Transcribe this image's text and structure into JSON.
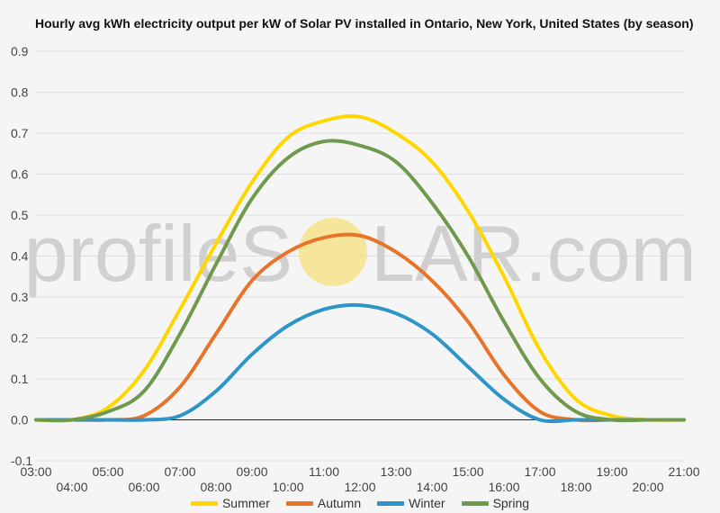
{
  "title": "Hourly avg kWh electricity output per kW of Solar PV installed in Ontario, New York, United States (by season)",
  "watermark": {
    "text_before": "profileS",
    "text_after": "LAR.com",
    "sun_color": "#f6e07c"
  },
  "chart_data": {
    "type": "line",
    "title": "Hourly avg kWh electricity output per kW of Solar PV installed in Ontario, New York, United States (by season)",
    "xlabel": "",
    "ylabel": "",
    "ylim": [
      -0.1,
      0.9
    ],
    "y_ticks": [
      "-0.1",
      "0.0",
      "0.1",
      "0.2",
      "0.3",
      "0.4",
      "0.5",
      "0.6",
      "0.7",
      "0.8",
      "0.9"
    ],
    "x_range": [
      3,
      21
    ],
    "x_tick_labels": [
      "03:00",
      "04:00",
      "05:00",
      "06:00",
      "07:00",
      "08:00",
      "09:00",
      "10:00",
      "11:00",
      "12:00",
      "13:00",
      "14:00",
      "15:00",
      "16:00",
      "17:00",
      "18:00",
      "19:00",
      "20:00",
      "21:00"
    ],
    "grid": true,
    "legend_position": "bottom",
    "x": [
      "03:00",
      "04:00",
      "05:00",
      "06:00",
      "07:00",
      "08:00",
      "09:00",
      "10:00",
      "11:00",
      "12:00",
      "13:00",
      "14:00",
      "15:00",
      "16:00",
      "17:00",
      "18:00",
      "19:00",
      "20:00",
      "21:00"
    ],
    "series": [
      {
        "name": "Summer",
        "color": "#ffd600",
        "values": [
          0.0,
          0.0,
          0.03,
          0.12,
          0.27,
          0.43,
          0.58,
          0.69,
          0.73,
          0.74,
          0.7,
          0.63,
          0.51,
          0.35,
          0.17,
          0.05,
          0.01,
          0.0,
          0.0
        ]
      },
      {
        "name": "Autumn",
        "color": "#e8732a",
        "values": [
          0.0,
          0.0,
          0.0,
          0.01,
          0.08,
          0.21,
          0.34,
          0.41,
          0.445,
          0.45,
          0.41,
          0.34,
          0.24,
          0.11,
          0.02,
          0.0,
          0.0,
          0.0,
          0.0
        ]
      },
      {
        "name": "Winter",
        "color": "#2d95c8",
        "values": [
          0.0,
          0.0,
          0.0,
          0.0,
          0.01,
          0.07,
          0.16,
          0.23,
          0.27,
          0.28,
          0.26,
          0.21,
          0.13,
          0.05,
          0.0,
          0.0,
          0.0,
          0.0,
          0.0
        ]
      },
      {
        "name": "Spring",
        "color": "#6f9a4e",
        "values": [
          0.0,
          0.0,
          0.02,
          0.07,
          0.21,
          0.38,
          0.54,
          0.64,
          0.68,
          0.67,
          0.63,
          0.53,
          0.4,
          0.24,
          0.1,
          0.02,
          0.0,
          0.0,
          0.0
        ]
      }
    ]
  }
}
